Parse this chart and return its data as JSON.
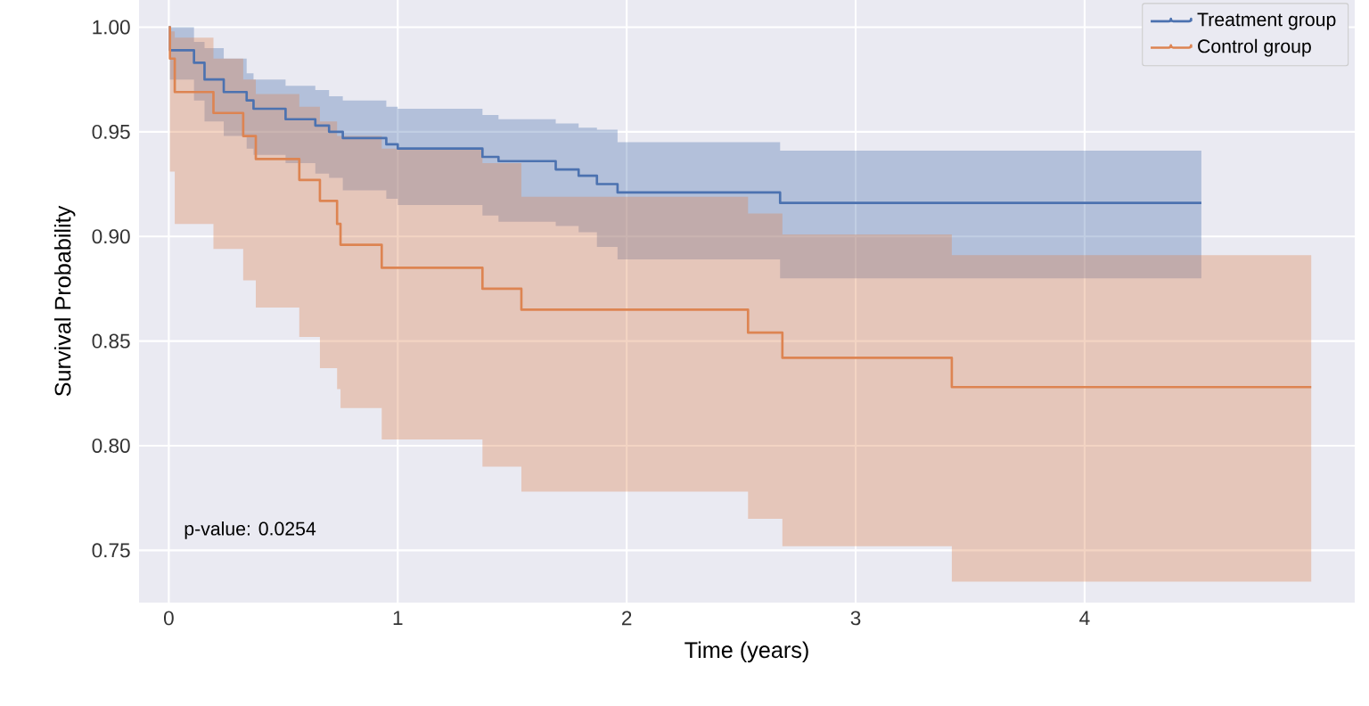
{
  "chart_data": {
    "type": "step",
    "xlabel": "Time (years)",
    "ylabel": "Survival Probability",
    "xlim": [
      -0.13,
      5.18
    ],
    "ylim": [
      0.725,
      1.013
    ],
    "xticks": [
      0,
      1,
      2,
      3,
      4
    ],
    "yticks": [
      {
        "value": 0.75,
        "label": "0.75"
      },
      {
        "value": 0.8,
        "label": "0.80"
      },
      {
        "value": 0.85,
        "label": "0.85"
      },
      {
        "value": 0.9,
        "label": "0.90"
      },
      {
        "value": 0.95,
        "label": "0.95"
      },
      {
        "value": 1.0,
        "label": "1.00"
      }
    ],
    "grid": true,
    "legend": "top right",
    "annotations": [
      "p-value: 0.0254"
    ],
    "series": [
      {
        "name": "Treatment group",
        "color": "#4c72b0",
        "x": [
          0,
          0.005,
          0.11,
          0.156,
          0.24,
          0.34,
          0.37,
          0.51,
          0.64,
          0.7,
          0.76,
          0.95,
          1.0,
          1.37,
          1.44,
          1.69,
          1.79,
          1.87,
          1.96,
          2.67,
          4.51
        ],
        "values": [
          1.0,
          0.989,
          0.983,
          0.975,
          0.969,
          0.965,
          0.961,
          0.956,
          0.953,
          0.95,
          0.947,
          0.944,
          0.942,
          0.938,
          0.936,
          0.932,
          0.929,
          0.925,
          0.921,
          0.916,
          0.916
        ],
        "upper": [
          1.0,
          1.0,
          0.993,
          0.99,
          0.985,
          0.978,
          0.975,
          0.972,
          0.97,
          0.967,
          0.965,
          0.962,
          0.961,
          0.958,
          0.956,
          0.954,
          0.952,
          0.951,
          0.945,
          0.941,
          0.941
        ],
        "lower": [
          1.0,
          0.975,
          0.965,
          0.955,
          0.948,
          0.942,
          0.939,
          0.935,
          0.93,
          0.928,
          0.922,
          0.918,
          0.915,
          0.91,
          0.907,
          0.905,
          0.902,
          0.895,
          0.889,
          0.88,
          0.88
        ]
      },
      {
        "name": "Control group",
        "color": "#dd8452",
        "x": [
          0,
          0.005,
          0.026,
          0.195,
          0.325,
          0.38,
          0.57,
          0.66,
          0.735,
          0.75,
          0.93,
          1.37,
          1.54,
          2.53,
          2.68,
          3.42,
          4.99
        ],
        "values": [
          1.0,
          0.985,
          0.969,
          0.959,
          0.948,
          0.937,
          0.927,
          0.917,
          0.906,
          0.896,
          0.885,
          0.875,
          0.865,
          0.854,
          0.842,
          0.828,
          0.828
        ],
        "upper": [
          1.0,
          0.998,
          0.995,
          0.985,
          0.975,
          0.968,
          0.962,
          0.955,
          0.948,
          0.948,
          0.942,
          0.935,
          0.919,
          0.911,
          0.901,
          0.891,
          0.891
        ],
        "lower": [
          1.0,
          0.931,
          0.906,
          0.894,
          0.879,
          0.866,
          0.852,
          0.837,
          0.827,
          0.818,
          0.803,
          0.79,
          0.778,
          0.765,
          0.752,
          0.735,
          0.735
        ]
      }
    ]
  }
}
